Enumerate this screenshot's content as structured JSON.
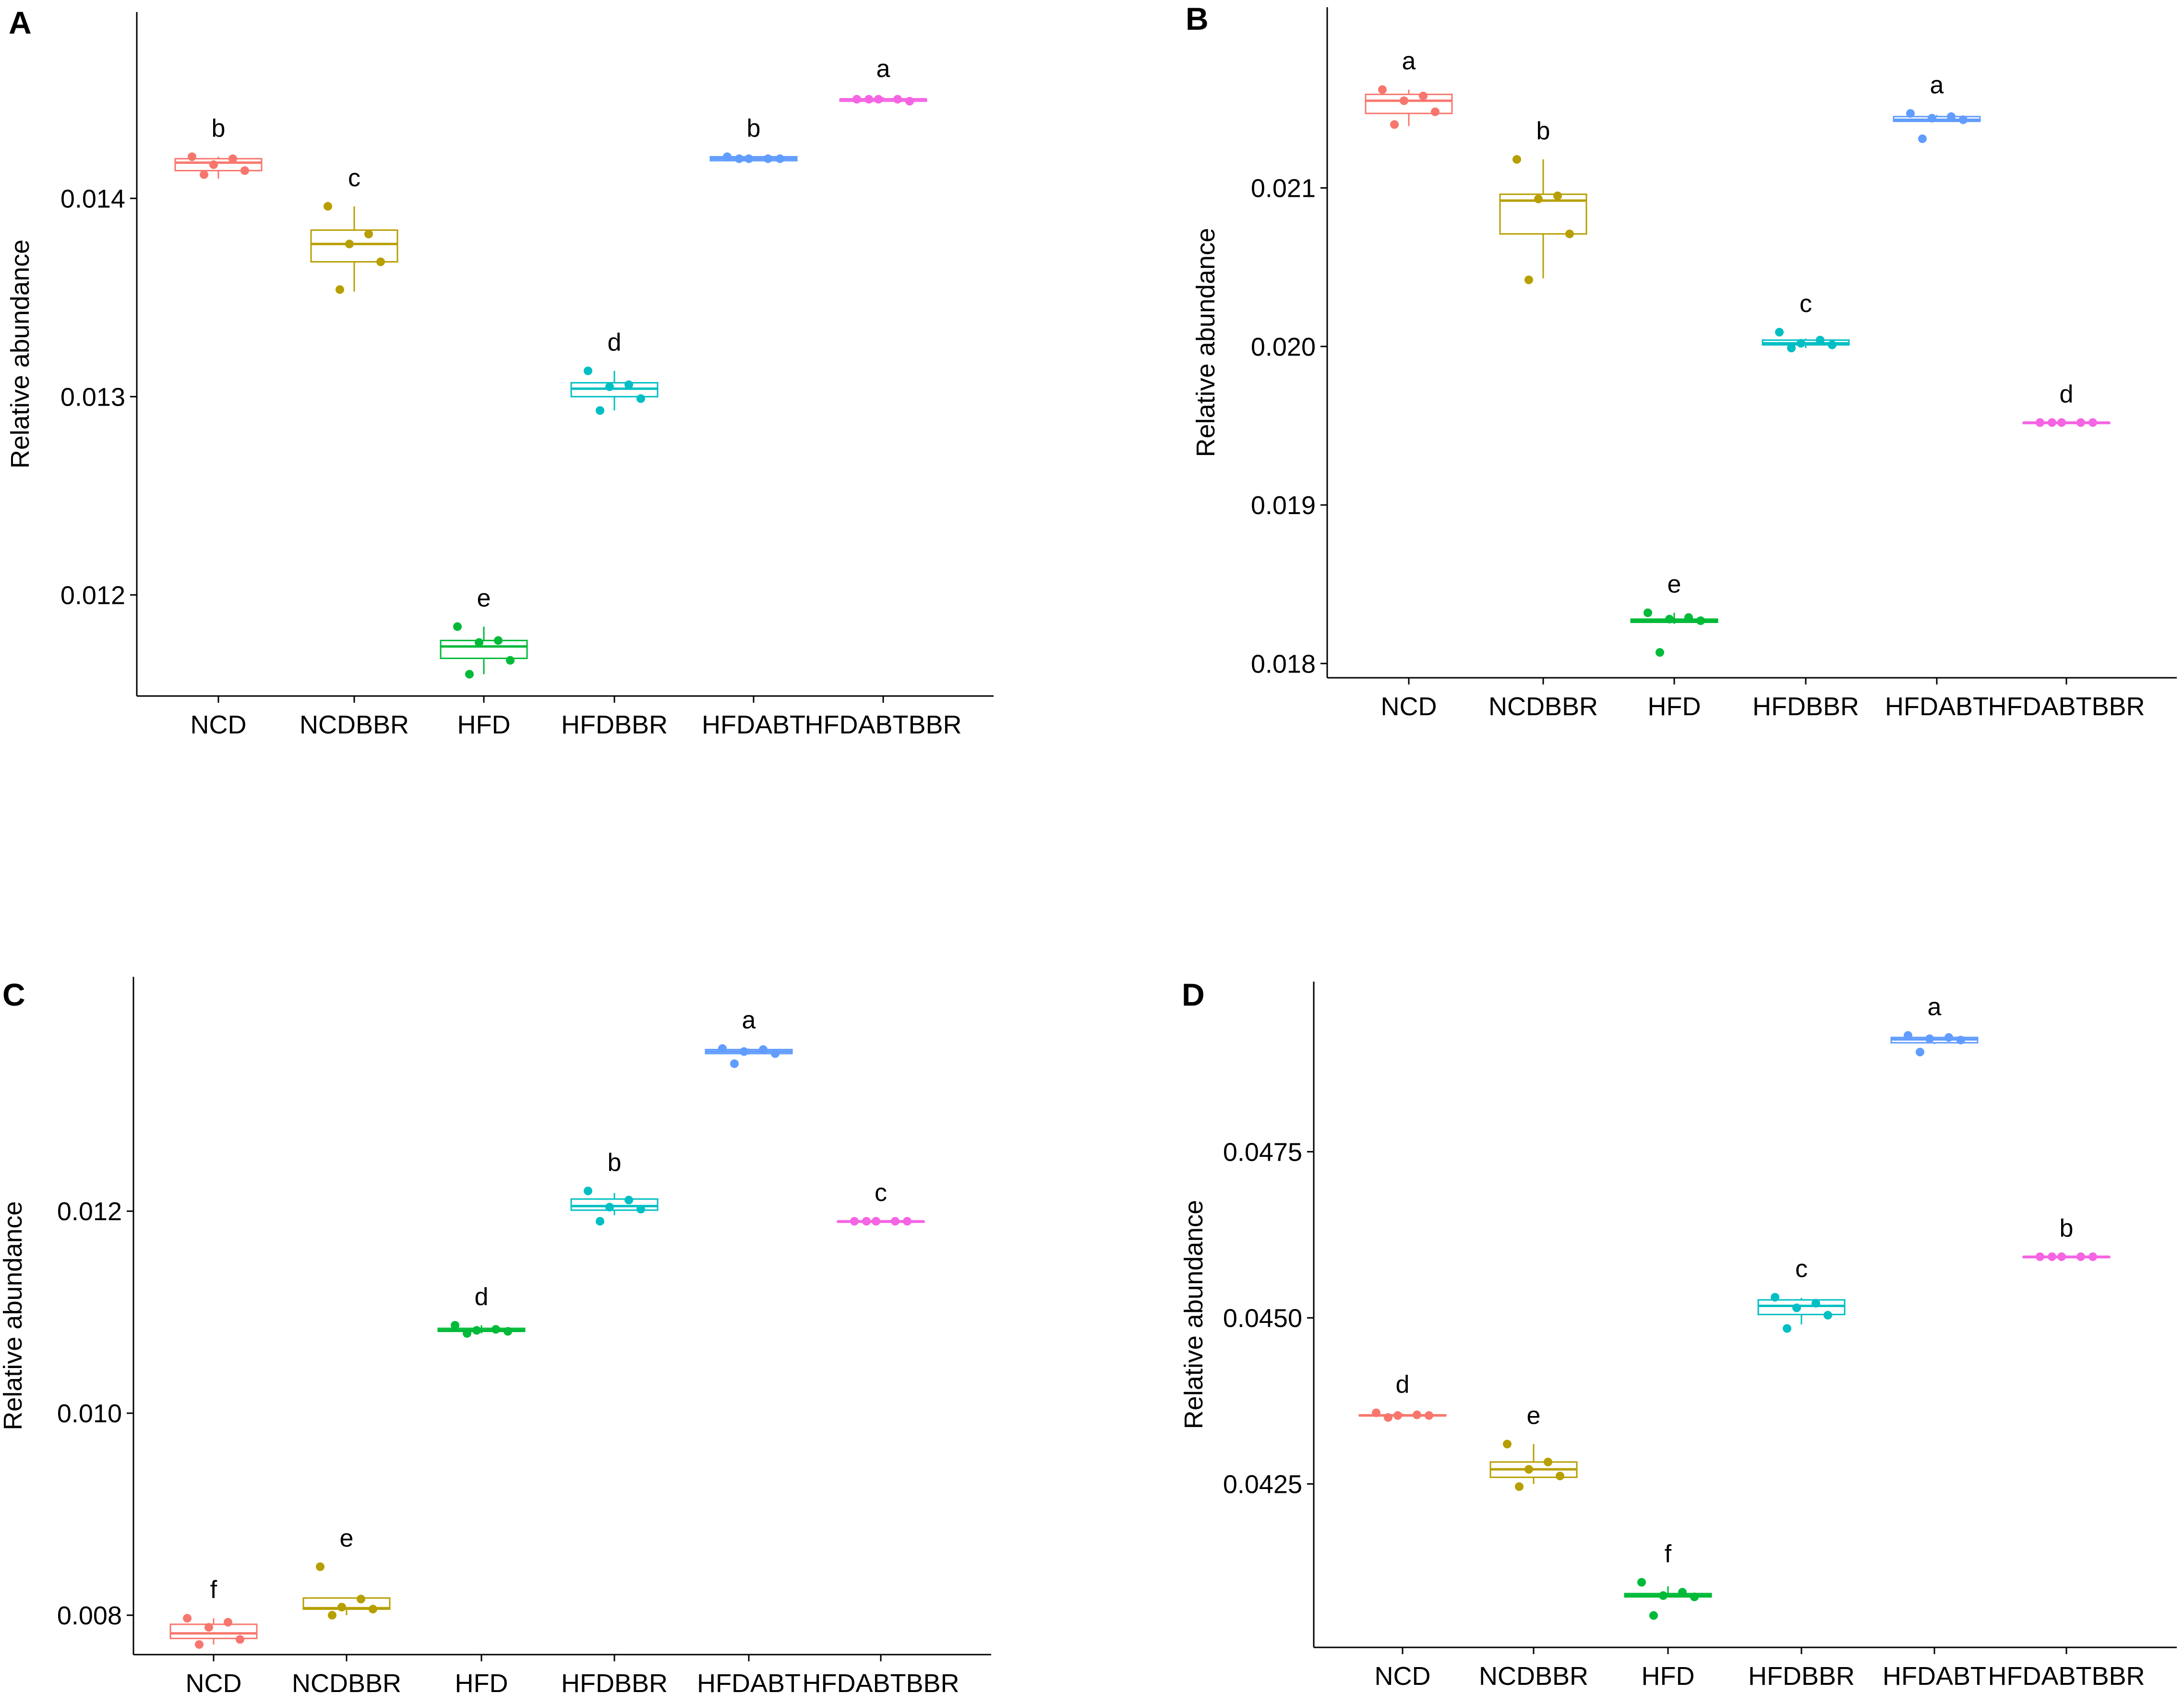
{
  "figure": {
    "groups": [
      "NCD",
      "NCDBBR",
      "HFD",
      "HFDBBR",
      "HFDABT",
      "HFDABTBBR"
    ],
    "group_colors": {
      "NCD": "#F8766D",
      "NCDBBR": "#B79F00",
      "HFD": "#00BA38",
      "HFDBBR": "#00BFC4",
      "HFDABT": "#619CFF",
      "HFDABTBBR": "#F564E3"
    }
  },
  "chart_data": [
    {
      "panel": "A",
      "type": "box",
      "ylabel": "Relative abundance",
      "categories": [
        "NCD",
        "NCDBBR",
        "HFD",
        "HFDBBR",
        "HFDABT",
        "HFDABTBBR"
      ],
      "yticks": [
        "0.012",
        "0.013",
        "0.014"
      ],
      "ylim": [
        0.01149,
        0.01494
      ],
      "series": [
        {
          "name": "NCD",
          "q1": 0.01414,
          "median": 0.01418,
          "q3": 0.0142,
          "whisker_low": 0.0141,
          "whisker_high": 0.01421,
          "points": [
            0.01421,
            0.0142,
            0.01417,
            0.01414,
            0.01412
          ],
          "letter": "b"
        },
        {
          "name": "NCDBBR",
          "q1": 0.01368,
          "median": 0.01377,
          "q3": 0.01384,
          "whisker_low": 0.01353,
          "whisker_high": 0.01396,
          "points": [
            0.01396,
            0.01382,
            0.01377,
            0.01368,
            0.01354
          ],
          "letter": "c"
        },
        {
          "name": "HFD",
          "q1": 0.01168,
          "median": 0.01174,
          "q3": 0.01177,
          "whisker_low": 0.0116,
          "whisker_high": 0.01184,
          "points": [
            0.01184,
            0.01177,
            0.01176,
            0.01167,
            0.0116
          ],
          "letter": "e"
        },
        {
          "name": "HFDBBR",
          "q1": 0.013,
          "median": 0.01304,
          "q3": 0.01307,
          "whisker_low": 0.01293,
          "whisker_high": 0.01313,
          "points": [
            0.01313,
            0.01306,
            0.01305,
            0.01299,
            0.01293
          ],
          "letter": "d"
        },
        {
          "name": "HFDABT",
          "q1": 0.01419,
          "median": 0.0142,
          "q3": 0.01421,
          "whisker_low": 0.01419,
          "whisker_high": 0.01421,
          "points": [
            0.01421,
            0.0142,
            0.0142,
            0.0142,
            0.0142
          ],
          "letter": "b"
        },
        {
          "name": "HFDABTBBR",
          "q1": 0.01449,
          "median": 0.0145,
          "q3": 0.0145,
          "whisker_low": 0.01449,
          "whisker_high": 0.01451,
          "points": [
            0.0145,
            0.0145,
            0.0145,
            0.01449,
            0.0145
          ],
          "letter": "a"
        }
      ]
    },
    {
      "panel": "B",
      "type": "box",
      "ylabel": "Relative abundance",
      "categories": [
        "NCD",
        "NCDBBR",
        "HFD",
        "HFDBBR",
        "HFDABT",
        "HFDABTBBR"
      ],
      "yticks": [
        "0.018",
        "0.019",
        "0.020",
        "0.021"
      ],
      "ylim": [
        0.01791,
        0.02214
      ],
      "series": [
        {
          "name": "NCD",
          "q1": 0.02147,
          "median": 0.02155,
          "q3": 0.02159,
          "whisker_low": 0.02139,
          "whisker_high": 0.02162,
          "points": [
            0.02162,
            0.02158,
            0.02155,
            0.02148,
            0.0214
          ],
          "letter": "a"
        },
        {
          "name": "NCDBBR",
          "q1": 0.02071,
          "median": 0.02092,
          "q3": 0.02096,
          "whisker_low": 0.02043,
          "whisker_high": 0.02118,
          "points": [
            0.02118,
            0.02095,
            0.02093,
            0.02071,
            0.02042
          ],
          "letter": "b"
        },
        {
          "name": "HFD",
          "q1": 0.01826,
          "median": 0.01827,
          "q3": 0.01828,
          "whisker_low": 0.01825,
          "whisker_high": 0.01832,
          "points": [
            0.01832,
            0.01829,
            0.01828,
            0.01827,
            0.01807
          ],
          "letter": "e"
        },
        {
          "name": "HFDBBR",
          "q1": 0.02001,
          "median": 0.02002,
          "q3": 0.02004,
          "whisker_low": 0.01999,
          "whisker_high": 0.02005,
          "points": [
            0.02009,
            0.02004,
            0.02002,
            0.02001,
            0.01999
          ],
          "letter": "c"
        },
        {
          "name": "HFDABT",
          "q1": 0.02142,
          "median": 0.02143,
          "q3": 0.02145,
          "whisker_low": 0.02142,
          "whisker_high": 0.02146,
          "points": [
            0.02147,
            0.02145,
            0.02144,
            0.02143,
            0.02131
          ],
          "letter": "a"
        },
        {
          "name": "HFDABTBBR",
          "q1": 0.01952,
          "median": 0.01952,
          "q3": 0.01952,
          "whisker_low": 0.01952,
          "whisker_high": 0.01952,
          "points": [
            0.01952,
            0.01952,
            0.01952,
            0.01952,
            0.01952
          ],
          "letter": "d"
        }
      ]
    },
    {
      "panel": "C",
      "type": "box",
      "ylabel": "Relative abundance",
      "categories": [
        "NCD",
        "NCDBBR",
        "HFD",
        "HFDBBR",
        "HFDABT",
        "HFDABTBBR"
      ],
      "yticks": [
        "0.008",
        "0.010",
        "0.012"
      ],
      "ylim": [
        0.00761,
        0.01432
      ],
      "series": [
        {
          "name": "NCD",
          "q1": 0.00777,
          "median": 0.00782,
          "q3": 0.00791,
          "whisker_low": 0.00771,
          "whisker_high": 0.00797,
          "points": [
            0.00797,
            0.00793,
            0.00788,
            0.00776,
            0.00771
          ],
          "letter": "f"
        },
        {
          "name": "NCDBBR",
          "q1": 0.00806,
          "median": 0.00807,
          "q3": 0.00817,
          "whisker_low": 0.008,
          "whisker_high": 0.00817,
          "points": [
            0.00848,
            0.00816,
            0.00808,
            0.00806,
            0.008
          ],
          "letter": "e"
        },
        {
          "name": "HFD",
          "q1": 0.01081,
          "median": 0.01082,
          "q3": 0.01084,
          "whisker_low": 0.01079,
          "whisker_high": 0.01087,
          "points": [
            0.01087,
            0.01083,
            0.01082,
            0.01081,
            0.01079
          ],
          "letter": "d"
        },
        {
          "name": "HFDBBR",
          "q1": 0.01201,
          "median": 0.01205,
          "q3": 0.01212,
          "whisker_low": 0.01196,
          "whisker_high": 0.01218,
          "points": [
            0.0122,
            0.01211,
            0.01204,
            0.01202,
            0.0119
          ],
          "letter": "b"
        },
        {
          "name": "HFDABT",
          "q1": 0.01356,
          "median": 0.01358,
          "q3": 0.0136,
          "whisker_low": 0.01355,
          "whisker_high": 0.01361,
          "points": [
            0.01361,
            0.0136,
            0.01358,
            0.01356,
            0.01346
          ],
          "letter": "a"
        },
        {
          "name": "HFDABTBBR",
          "q1": 0.0119,
          "median": 0.0119,
          "q3": 0.0119,
          "whisker_low": 0.0119,
          "whisker_high": 0.0119,
          "points": [
            0.0119,
            0.0119,
            0.0119,
            0.0119,
            0.0119
          ],
          "letter": "c"
        }
      ]
    },
    {
      "panel": "D",
      "type": "box",
      "ylabel": "Relative abundance",
      "categories": [
        "NCD",
        "NCDBBR",
        "HFD",
        "HFDBBR",
        "HFDABT",
        "HFDABTBBR"
      ],
      "yticks": [
        "0.0425",
        "0.0450",
        "0.0475"
      ],
      "ylim": [
        0.04004,
        0.05006
      ],
      "series": [
        {
          "name": "NCD",
          "q1": 0.04353,
          "median": 0.04353,
          "q3": 0.04354,
          "whisker_low": 0.04352,
          "whisker_high": 0.04356,
          "points": [
            0.04357,
            0.04354,
            0.04353,
            0.04353,
            0.0435
          ],
          "letter": "d"
        },
        {
          "name": "NCDBBR",
          "q1": 0.0426,
          "median": 0.04272,
          "q3": 0.04283,
          "whisker_low": 0.0425,
          "whisker_high": 0.0431,
          "points": [
            0.0431,
            0.04283,
            0.04272,
            0.04262,
            0.04246
          ],
          "letter": "e"
        },
        {
          "name": "HFD",
          "q1": 0.0408,
          "median": 0.04082,
          "q3": 0.04085,
          "whisker_low": 0.0408,
          "whisker_high": 0.04096,
          "points": [
            0.04102,
            0.04087,
            0.04082,
            0.0408,
            0.04052
          ],
          "letter": "f"
        },
        {
          "name": "HFDBBR",
          "q1": 0.04505,
          "median": 0.04518,
          "q3": 0.04527,
          "whisker_low": 0.0449,
          "whisker_high": 0.0453,
          "points": [
            0.04531,
            0.04522,
            0.04515,
            0.04504,
            0.04484
          ],
          "letter": "c"
        },
        {
          "name": "HFDABT",
          "q1": 0.04914,
          "median": 0.04919,
          "q3": 0.04922,
          "whisker_low": 0.04912,
          "whisker_high": 0.04923,
          "points": [
            0.04925,
            0.04922,
            0.0492,
            0.04918,
            0.049
          ],
          "letter": "a"
        },
        {
          "name": "HFDABTBBR",
          "q1": 0.04592,
          "median": 0.04592,
          "q3": 0.04592,
          "whisker_low": 0.04592,
          "whisker_high": 0.04592,
          "points": [
            0.04592,
            0.04592,
            0.04592,
            0.04592,
            0.04592
          ],
          "letter": "b"
        }
      ]
    }
  ]
}
